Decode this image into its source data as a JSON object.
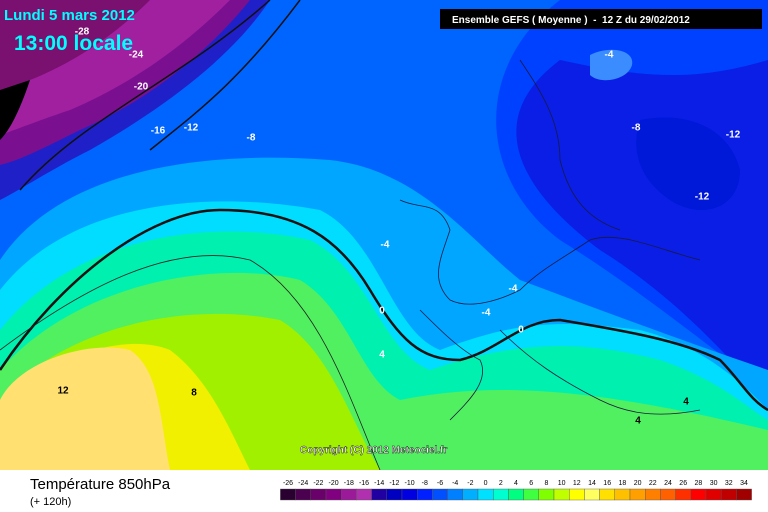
{
  "header": {
    "date": "Lundi 5 mars 2012",
    "time": "13:00 locale",
    "run": "Ensemble GEFS ( Moyenne )  -  12 Z du 29/02/2012"
  },
  "copyright": "Copyright (C) 2012 Meteociel.fr",
  "footer": {
    "title": "Température 850hPa",
    "lead": "(+ 120h)"
  },
  "legend": {
    "labels": [
      -26,
      -24,
      -22,
      -20,
      -18,
      -16,
      -14,
      -12,
      -10,
      -8,
      -6,
      -4,
      -2,
      0,
      2,
      4,
      6,
      8,
      10,
      12,
      14,
      16,
      18,
      20,
      22,
      24,
      26,
      28,
      30,
      32,
      34
    ],
    "colors": [
      "#2a0030",
      "#4b0050",
      "#6a006a",
      "#800080",
      "#9a1a9a",
      "#b030b0",
      "#2000a0",
      "#0000c0",
      "#0000e0",
      "#0020ff",
      "#0050ff",
      "#0080ff",
      "#00b0ff",
      "#00e0ff",
      "#00ffd0",
      "#00ff80",
      "#40ff40",
      "#80ff00",
      "#c0ff00",
      "#ffff00",
      "#ffff60",
      "#ffe000",
      "#ffc000",
      "#ffa000",
      "#ff8000",
      "#ff6000",
      "#ff3000",
      "#ff0000",
      "#e00000",
      "#c00000",
      "#a00000"
    ]
  },
  "contour_labels": [
    -28,
    -24,
    -20,
    -16,
    -12,
    -8,
    -4,
    -12,
    -12,
    -8,
    -4,
    -4,
    -4,
    0,
    0,
    4,
    8,
    12,
    4,
    4
  ]
}
